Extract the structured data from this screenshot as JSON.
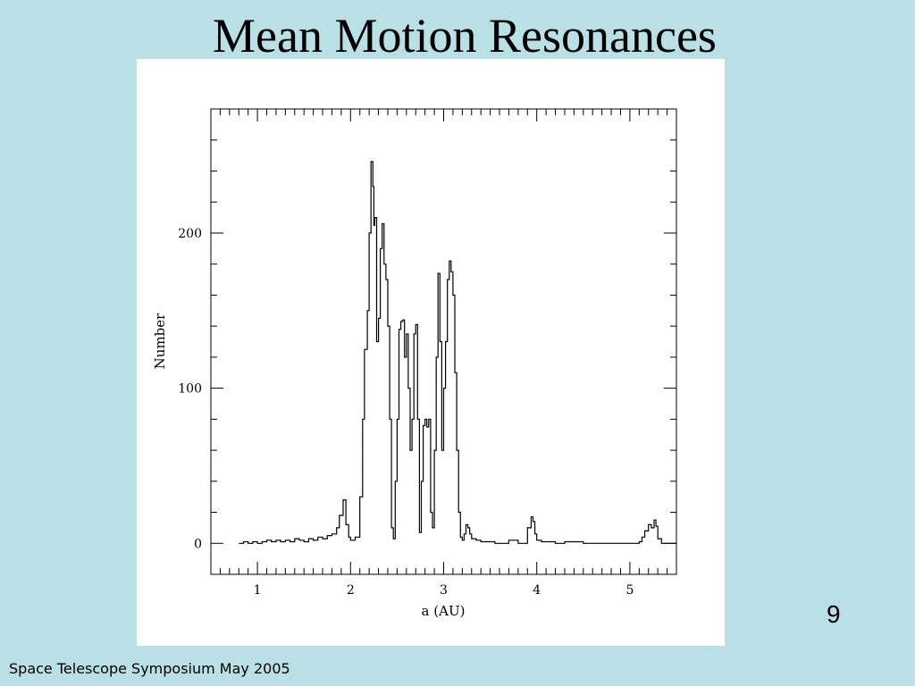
{
  "slide": {
    "title": "Mean Motion Resonances",
    "page_number": "9",
    "footer": "Space Telescope Symposium May 2005"
  },
  "chart_data": {
    "type": "line",
    "step": true,
    "xlabel": "a (AU)",
    "ylabel": "Number",
    "xlim": [
      0.5,
      5.5
    ],
    "ylim": [
      -20,
      280
    ],
    "xticks": [
      1,
      2,
      3,
      4,
      5
    ],
    "xtick_labels": [
      "1",
      "2",
      "3",
      "4",
      "5"
    ],
    "yticks": [
      0,
      100,
      200
    ],
    "ytick_labels": [
      "0",
      "100",
      "200"
    ],
    "grid": false,
    "series": [
      {
        "x": [
          0.8,
          0.85,
          0.9,
          0.95,
          1.0,
          1.05,
          1.1,
          1.15,
          1.2,
          1.25,
          1.3,
          1.35,
          1.4,
          1.45,
          1.5,
          1.55,
          1.6,
          1.65,
          1.7,
          1.75,
          1.8,
          1.85,
          1.88,
          1.92,
          1.95,
          1.98,
          2.0,
          2.05,
          2.1,
          2.13,
          2.15,
          2.18,
          2.2,
          2.22,
          2.24,
          2.25,
          2.26,
          2.28,
          2.3,
          2.32,
          2.34,
          2.36,
          2.38,
          2.4,
          2.42,
          2.44,
          2.46,
          2.48,
          2.5,
          2.52,
          2.54,
          2.56,
          2.58,
          2.6,
          2.62,
          2.64,
          2.66,
          2.68,
          2.7,
          2.72,
          2.74,
          2.76,
          2.78,
          2.8,
          2.82,
          2.84,
          2.86,
          2.88,
          2.9,
          2.92,
          2.94,
          2.96,
          2.98,
          3.0,
          3.02,
          3.04,
          3.06,
          3.08,
          3.1,
          3.12,
          3.14,
          3.16,
          3.18,
          3.2,
          3.22,
          3.24,
          3.26,
          3.28,
          3.3,
          3.35,
          3.4,
          3.45,
          3.5,
          3.55,
          3.6,
          3.7,
          3.8,
          3.9,
          3.94,
          3.96,
          3.98,
          4.0,
          4.05,
          4.2,
          4.3,
          4.5,
          5.0,
          5.1,
          5.13,
          5.16,
          5.2,
          5.23,
          5.26,
          5.28,
          5.3,
          5.34,
          5.5
        ],
        "y": [
          0,
          1,
          0,
          1,
          0,
          1,
          2,
          1,
          2,
          1,
          2,
          1,
          3,
          2,
          1,
          3,
          2,
          4,
          3,
          5,
          6,
          10,
          18,
          28,
          12,
          4,
          2,
          4,
          30,
          80,
          125,
          150,
          200,
          246,
          230,
          205,
          210,
          130,
          145,
          190,
          206,
          180,
          170,
          140,
          80,
          10,
          3,
          40,
          80,
          138,
          143,
          144,
          120,
          135,
          100,
          60,
          80,
          135,
          141,
          80,
          7,
          40,
          76,
          80,
          75,
          80,
          20,
          10,
          60,
          120,
          174,
          130,
          60,
          100,
          130,
          170,
          182,
          175,
          160,
          110,
          60,
          20,
          4,
          2,
          6,
          12,
          10,
          6,
          3,
          2,
          1,
          1,
          1,
          0,
          0,
          2,
          0,
          10,
          17,
          14,
          6,
          2,
          1,
          0,
          1,
          0,
          0,
          1,
          4,
          8,
          12,
          10,
          15,
          11,
          3,
          0,
          0
        ]
      }
    ]
  }
}
